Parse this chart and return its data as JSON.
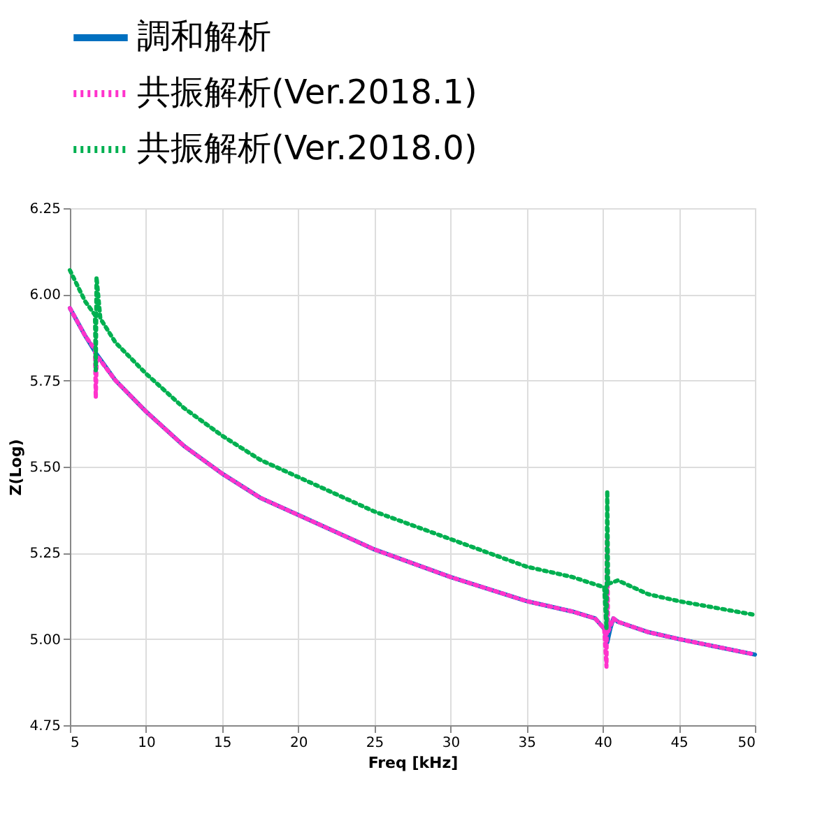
{
  "chart_data": {
    "type": "line",
    "xlabel": "Freq [kHz]",
    "ylabel": "Z(Log)",
    "xlim": [
      5,
      50
    ],
    "xticks": [
      5,
      10,
      15,
      20,
      25,
      30,
      35,
      40,
      45,
      50
    ],
    "ylim": [
      4.75,
      6.25
    ],
    "yticks": [
      {
        "value": 4.75,
        "label": "4.75"
      },
      {
        "value": 5,
        "label": "5.00"
      },
      {
        "value": 5.25,
        "label": "5.25"
      },
      {
        "value": 5.5,
        "label": "5.50"
      },
      {
        "value": 5.75,
        "label": "5.75"
      },
      {
        "value": 6,
        "label": "6.00"
      },
      {
        "value": 6.25,
        "label": "6.25"
      }
    ],
    "grid": true,
    "legend": "top",
    "series": [
      {
        "name": "調和解析",
        "color": "#0070c0",
        "line_style": "solid",
        "x": [
          5,
          6,
          6.7,
          8,
          10,
          12.5,
          15,
          17.5,
          20,
          25,
          30,
          35,
          38,
          39.5,
          40.1,
          40.3,
          40.5,
          40.7,
          41,
          43,
          45,
          50
        ],
        "values": [
          5.96,
          5.88,
          5.83,
          5.75,
          5.66,
          5.56,
          5.48,
          5.41,
          5.36,
          5.26,
          5.18,
          5.11,
          5.08,
          5.06,
          5.03,
          4.99,
          5.03,
          5.06,
          5.05,
          5.02,
          5.0,
          4.955
        ]
      },
      {
        "name": "共振解析(Ver.2018.1)",
        "color": "#ff33cc",
        "line_style": "dotted",
        "x": [
          5,
          6,
          6.65,
          6.7,
          6.75,
          6.8,
          8,
          10,
          12.5,
          15,
          17.5,
          20,
          25,
          30,
          35,
          38,
          39.5,
          40.1,
          40.25,
          40.3,
          40.35,
          40.7,
          41,
          43,
          45,
          50
        ],
        "values": [
          5.96,
          5.88,
          5.84,
          5.7,
          5.8,
          5.82,
          5.75,
          5.66,
          5.56,
          5.48,
          5.41,
          5.36,
          5.26,
          5.18,
          5.11,
          5.08,
          5.06,
          5.03,
          4.92,
          5.3,
          5.02,
          5.06,
          5.05,
          5.02,
          5.0,
          4.955
        ]
      },
      {
        "name": "共振解析(Ver.2018.0)",
        "color": "#00b050",
        "line_style": "dotted",
        "x": [
          5,
          6,
          6.65,
          6.7,
          6.75,
          7,
          8,
          10,
          12.5,
          15,
          17.5,
          20,
          25,
          30,
          35,
          38,
          40.1,
          40.25,
          40.3,
          40.35,
          41,
          43,
          45,
          50
        ],
        "values": [
          6.07,
          5.98,
          5.94,
          5.78,
          6.05,
          5.93,
          5.86,
          5.77,
          5.67,
          5.59,
          5.52,
          5.47,
          5.37,
          5.29,
          5.21,
          5.18,
          5.15,
          5.03,
          5.43,
          5.16,
          5.17,
          5.13,
          5.11,
          5.07
        ]
      }
    ]
  }
}
